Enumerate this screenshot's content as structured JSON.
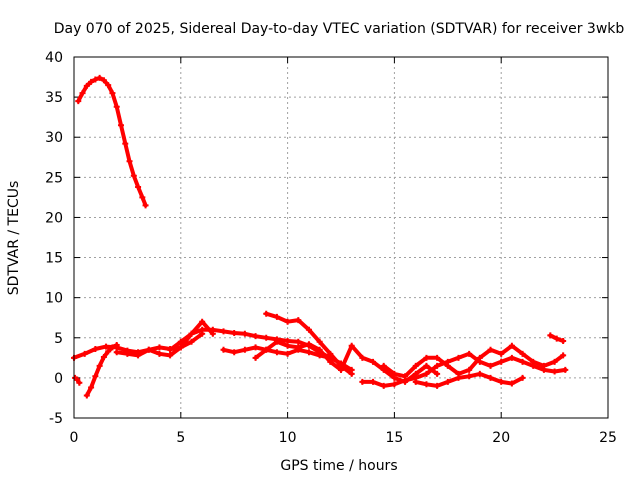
{
  "chart_data": {
    "type": "scatter",
    "title": "Day 070 of 2025, Sidereal Day-to-day VTEC variation (SDTVAR) for receiver 3wkb",
    "xlabel": "GPS time / hours",
    "ylabel": "SDTVAR / TECUs",
    "xlim": [
      0,
      25
    ],
    "ylim": [
      -5,
      40
    ],
    "xticks": [
      "0",
      "5",
      "10",
      "15",
      "20",
      "25"
    ],
    "yticks": [
      "-5",
      "0",
      "5",
      "10",
      "15",
      "20",
      "25",
      "30",
      "35",
      "40"
    ],
    "grid": true,
    "legend": "none",
    "series_color": "#ff0000",
    "series": [
      {
        "name": "arc-high",
        "x": [
          0.2,
          0.4,
          0.6,
          0.8,
          1.0,
          1.2,
          1.4,
          1.6,
          1.8,
          2.0,
          2.2,
          2.4,
          2.6,
          2.8,
          3.0,
          3.2,
          3.35
        ],
        "y": [
          34.5,
          35.5,
          36.4,
          36.9,
          37.2,
          37.4,
          37.1,
          36.5,
          35.5,
          33.8,
          31.5,
          29.2,
          27.0,
          25.2,
          23.8,
          22.5,
          21.5
        ]
      },
      {
        "name": "arc-short-neg",
        "x": [
          0.05,
          0.15,
          0.25
        ],
        "y": [
          0.0,
          -0.2,
          -0.6
        ]
      },
      {
        "name": "arc-rise",
        "x": [
          0.6,
          0.8,
          1.0,
          1.2,
          1.4,
          1.6,
          1.8,
          2.0
        ],
        "y": [
          -2.2,
          -1.2,
          0.2,
          1.5,
          2.6,
          3.3,
          3.8,
          4.1
        ]
      },
      {
        "name": "arc-low-a",
        "x": [
          0.0,
          0.5,
          1.0,
          1.5,
          2.0,
          2.5,
          3.0,
          3.5,
          4.0,
          4.5,
          5.0,
          5.5,
          6.0
        ],
        "y": [
          2.5,
          3.0,
          3.6,
          3.9,
          3.8,
          3.4,
          3.2,
          3.5,
          3.8,
          3.6,
          3.8,
          4.5,
          5.5
        ]
      },
      {
        "name": "arc-low-b",
        "x": [
          2.0,
          2.5,
          3.0,
          3.5,
          4.0,
          4.5,
          5.0,
          5.5,
          6.0,
          6.5
        ],
        "y": [
          3.2,
          3.0,
          2.8,
          3.5,
          3.0,
          2.8,
          3.8,
          5.5,
          7.0,
          5.5
        ]
      },
      {
        "name": "arc-mid-a",
        "x": [
          4.5,
          5.0,
          5.5,
          6.0,
          6.5,
          7.0,
          7.5,
          8.0,
          8.5,
          9.0,
          9.5,
          10.0,
          10.5,
          11.0,
          11.5,
          12.0,
          12.5,
          13.0
        ],
        "y": [
          3.5,
          4.5,
          5.5,
          6.0,
          6.0,
          5.8,
          5.6,
          5.5,
          5.2,
          5.0,
          4.8,
          4.6,
          4.5,
          4.0,
          3.2,
          2.5,
          1.8,
          1.0
        ]
      },
      {
        "name": "arc-mid-b",
        "x": [
          7.0,
          7.5,
          8.0,
          8.5,
          9.0,
          9.5,
          10.0,
          10.5,
          11.0,
          11.5,
          12.0
        ],
        "y": [
          3.5,
          3.2,
          3.5,
          3.8,
          3.5,
          3.2,
          3.0,
          3.5,
          3.2,
          2.8,
          2.5
        ]
      },
      {
        "name": "arc-mid-c",
        "x": [
          9.0,
          9.5,
          10.0,
          10.5,
          11.0,
          11.5,
          12.0,
          12.5,
          13.0
        ],
        "y": [
          8.0,
          7.6,
          7.0,
          7.2,
          6.0,
          4.5,
          3.0,
          1.5,
          0.5
        ]
      },
      {
        "name": "arc-mid-d",
        "x": [
          8.5,
          9.0,
          9.5,
          10.0,
          10.5,
          11.0,
          11.5,
          12.0,
          12.5
        ],
        "y": [
          2.5,
          3.5,
          4.5,
          4.0,
          3.8,
          4.2,
          3.5,
          2.0,
          1.0
        ]
      },
      {
        "name": "arc-late-a",
        "x": [
          12.5,
          13.0,
          13.5,
          14.0,
          14.5,
          15.0,
          15.5,
          16.0,
          16.5,
          17.0
        ],
        "y": [
          1.0,
          4.0,
          2.5,
          2.0,
          1.0,
          0.0,
          -0.5,
          0.5,
          1.5,
          0.5
        ]
      },
      {
        "name": "arc-late-b",
        "x": [
          13.5,
          14.0,
          14.5,
          15.0,
          15.5,
          16.0,
          16.5,
          17.0,
          17.5,
          18.0,
          18.5,
          19.0,
          19.5,
          20.0,
          20.5,
          21.0,
          21.5,
          22.0,
          22.5,
          23.0
        ],
        "y": [
          -0.5,
          -0.5,
          -1.0,
          -0.8,
          -0.3,
          0.0,
          0.5,
          1.5,
          2.0,
          2.5,
          3.0,
          2.0,
          1.5,
          2.0,
          2.5,
          2.0,
          1.5,
          1.0,
          0.8,
          1.0
        ]
      },
      {
        "name": "arc-late-c",
        "x": [
          14.5,
          15.0,
          15.5,
          16.0,
          16.5,
          17.0,
          17.5,
          18.0,
          18.5,
          19.0,
          19.5,
          20.0,
          20.5,
          21.0,
          21.5,
          22.0,
          22.5,
          22.9
        ],
        "y": [
          1.5,
          0.5,
          0.2,
          1.5,
          2.5,
          2.5,
          1.5,
          0.5,
          1.0,
          2.5,
          3.5,
          3.0,
          4.0,
          3.0,
          2.0,
          1.5,
          2.0,
          2.8
        ]
      },
      {
        "name": "arc-late-d",
        "x": [
          16.0,
          16.5,
          17.0,
          17.5,
          18.0,
          18.5,
          19.0,
          19.5,
          20.0,
          20.5,
          21.0
        ],
        "y": [
          -0.5,
          -0.8,
          -1.0,
          -0.5,
          0.0,
          0.2,
          0.5,
          0.0,
          -0.5,
          -0.7,
          0.0
        ]
      },
      {
        "name": "arc-late-e",
        "x": [
          22.3,
          22.6,
          22.9
        ],
        "y": [
          5.3,
          4.9,
          4.6
        ]
      }
    ]
  }
}
